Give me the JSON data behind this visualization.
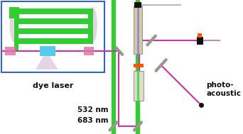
{
  "bg_color": "#ffffff",
  "box_color": "#3366cc",
  "green_color": "#33cc33",
  "pink_color": "#cc33aa",
  "magenta_color": "#cc33aa",
  "cyan_color": "#55ccee",
  "tan_color": "#bbaa88",
  "beige_color": "#ccccaa",
  "orange_color": "#ff5500",
  "gray_color": "#aaaaaa",
  "dark_color": "#111111",
  "mirror_color": "#999988",
  "lavender_color": "#ccaacc",
  "rose_color": "#dd77aa",
  "label_dye": "dye laser",
  "label_532": "532 nm",
  "label_683": "683 nm",
  "label_photo": "photo-\nacoustic"
}
